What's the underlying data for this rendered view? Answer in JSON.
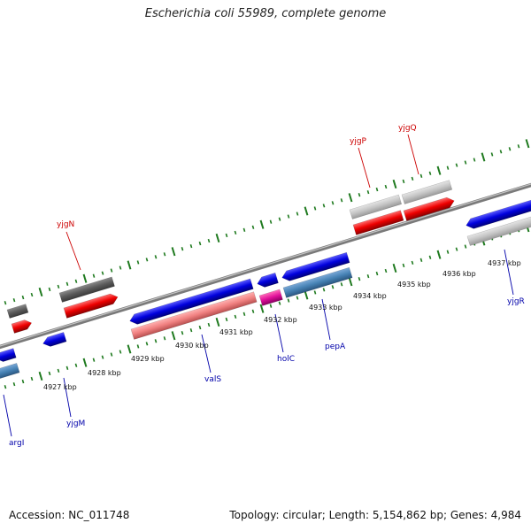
{
  "title": "Escherichia coli 55989, complete genome",
  "footer": {
    "accession": "Accession: NC_011748",
    "stats": "Topology: circular; Length: 5,154,862 bp; Genes: 4,984"
  },
  "colors": {
    "tick": "#1f7a1f",
    "backbone": "#8a8a8a",
    "label_forward": "#cc0000",
    "label_reverse": "#0000aa"
  },
  "scale_labels": [
    "4927 kbp",
    "4928 kbp",
    "4929 kbp",
    "4930 kbp",
    "4931 kbp",
    "4932 kbp",
    "4933 kbp",
    "4934 kbp",
    "4935 kbp",
    "4936 kbp",
    "4937 kbp"
  ],
  "forward_gene_labels": [
    "yjgN",
    "yjgP",
    "yjgQ"
  ],
  "reverse_gene_labels": [
    "argI",
    "yjgM",
    "valS",
    "holC",
    "pepA",
    "yjgR"
  ]
}
